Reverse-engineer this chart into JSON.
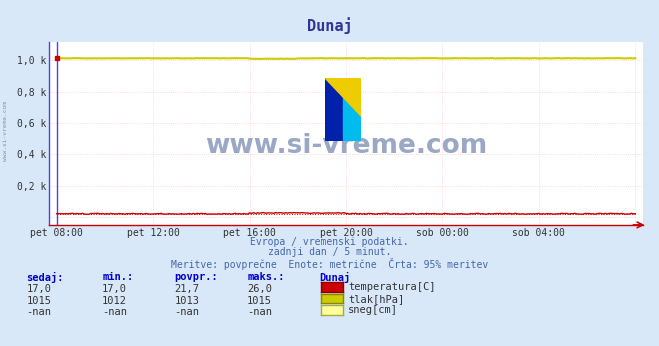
{
  "title": "Dunaj",
  "bg_color": "#d8e8f8",
  "plot_bg_color": "#ffffff",
  "x_labels": [
    "pet 08:00",
    "pet 12:00",
    "pet 16:00",
    "pet 20:00",
    "sob 00:00",
    "sob 04:00"
  ],
  "x_tick_pos": [
    0,
    4,
    8,
    12,
    16,
    20
  ],
  "ylim": [
    -0.05,
    1.12
  ],
  "xlim": [
    -0.3,
    24.3
  ],
  "y_ticks": [
    0.0,
    0.2,
    0.4,
    0.6,
    0.8,
    1.0
  ],
  "y_tick_labels": [
    "",
    "0,2 k",
    "0,4 k",
    "0,6 k",
    "0,8 k",
    "1,0 k"
  ],
  "grid_color": "#ffcccc",
  "grid_minor_color": "#ffe8e8",
  "temp_color": "#cc0000",
  "pressure_color": "#cccc00",
  "snow_color": "#ffff99",
  "axis_color": "#4444ff",
  "subtitle1": "Evropa / vremenski podatki.",
  "subtitle2": "zadnji dan / 5 minut.",
  "subtitle3": "Meritve: povprečne  Enote: metrične  Črta: 95% meritev",
  "col_headers": [
    "sedaj:",
    "min.:",
    "povpr.:",
    "maks.:",
    "Dunaj"
  ],
  "row1": [
    "17,0",
    "17,0",
    "21,7",
    "26,0"
  ],
  "row2": [
    "1015",
    "1012",
    "1013",
    "1015"
  ],
  "row3": [
    "-nan",
    "-nan",
    "-nan",
    "-nan"
  ],
  "legend_labels": [
    "temperatura[C]",
    "tlak[hPa]",
    "sneg[cm]"
  ],
  "legend_colors": [
    "#cc0000",
    "#cccc00",
    "#ffff99"
  ],
  "legend_border_colors": [
    "#880000",
    "#888800",
    "#aaaa44"
  ],
  "watermark": "www.si-vreme.com",
  "watermark_color": "#8899bb",
  "left_label": "www.si-vreme.com",
  "left_label_color": "#7788aa",
  "header_color": "#0000cc",
  "text_color": "#333333",
  "subtitle_color": "#4466aa"
}
